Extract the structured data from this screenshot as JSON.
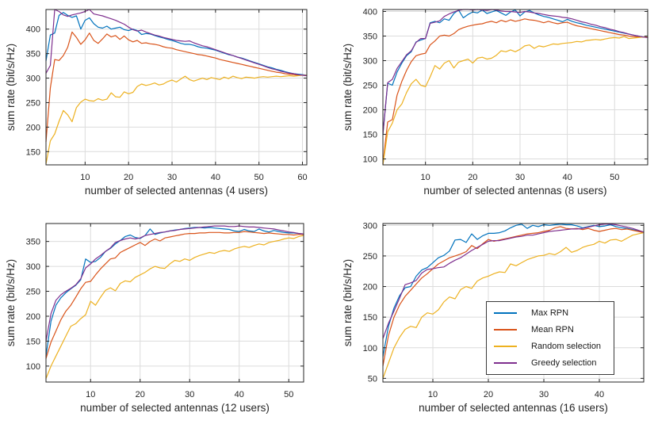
{
  "figure": {
    "background": "#ffffff",
    "axis_color": "#262626",
    "grid_color": "#dcdcdc",
    "ylabel": "sum rate (bit/s/Hz)"
  },
  "legend": {
    "background": "#ffffff",
    "border_color": "#3a3a3a",
    "entries": [
      {
        "label": "Max RPN",
        "color": "#0072BD"
      },
      {
        "label": "Mean RPN",
        "color": "#D95319"
      },
      {
        "label": "Random selection",
        "color": "#EDB120"
      },
      {
        "label": "Greedy selection",
        "color": "#7E2F8E"
      }
    ]
  },
  "chart_data": [
    {
      "type": "line",
      "title": "",
      "xlabel": "number of selected antennas (4 users)",
      "ylabel": "sum rate (bit/s/Hz)",
      "xlim": [
        1,
        61
      ],
      "ylim": [
        123,
        440
      ],
      "xticks": [
        10,
        20,
        30,
        40,
        50,
        60
      ],
      "yticks": [
        150,
        200,
        250,
        300,
        350,
        400
      ],
      "grid": true,
      "legend_position": "none",
      "x_start": 1,
      "x_step": 1,
      "series": [
        {
          "name": "Max RPN",
          "color": "#0072BD",
          "values": [
            335,
            388,
            392,
            428,
            434,
            428,
            424,
            427,
            400,
            418,
            423,
            411,
            404,
            402,
            406,
            400,
            402,
            404,
            399,
            397,
            400,
            397,
            389,
            391,
            390,
            387,
            384,
            382,
            379,
            377,
            374,
            371,
            369,
            369,
            367,
            364,
            362,
            361,
            359,
            357,
            354,
            351,
            348,
            346,
            343,
            341,
            338,
            335,
            332,
            329,
            326,
            323,
            321,
            318,
            316,
            313,
            311,
            309,
            308,
            307,
            306
          ]
        },
        {
          "name": "Mean RPN",
          "color": "#D95319",
          "values": [
            170,
            280,
            338,
            336,
            346,
            363,
            394,
            383,
            369,
            378,
            392,
            377,
            371,
            380,
            390,
            384,
            387,
            379,
            386,
            378,
            374,
            377,
            371,
            372,
            370,
            369,
            367,
            364,
            362,
            361,
            358,
            356,
            354,
            352,
            350,
            348,
            347,
            345,
            343,
            341,
            338,
            336,
            334,
            332,
            330,
            328,
            326,
            324,
            322,
            320,
            318,
            316,
            314,
            312,
            311,
            309,
            308,
            307,
            306,
            306,
            305
          ]
        },
        {
          "name": "Random selection",
          "color": "#EDB120",
          "values": [
            125,
            172,
            186,
            212,
            234,
            225,
            211,
            240,
            251,
            257,
            254,
            253,
            258,
            255,
            257,
            270,
            262,
            261,
            272,
            268,
            271,
            283,
            288,
            285,
            287,
            290,
            286,
            288,
            293,
            296,
            292,
            298,
            304,
            297,
            294,
            297,
            300,
            297,
            301,
            299,
            297,
            302,
            299,
            304,
            301,
            299,
            302,
            301,
            300,
            302,
            303,
            302,
            303,
            304,
            303,
            304,
            305,
            304,
            305,
            306,
            306
          ]
        },
        {
          "name": "Greedy selection",
          "color": "#7E2F8E",
          "values": [
            310,
            326,
            440,
            436,
            429,
            426,
            429,
            431,
            433,
            436,
            440,
            431,
            429,
            427,
            424,
            421,
            418,
            414,
            410,
            404,
            399,
            396,
            398,
            394,
            391,
            388,
            386,
            383,
            381,
            379,
            377,
            376,
            375,
            376,
            372,
            369,
            366,
            364,
            361,
            358,
            355,
            352,
            349,
            346,
            343,
            340,
            337,
            334,
            331,
            328,
            325,
            322,
            319,
            317,
            314,
            312,
            310,
            309,
            307,
            306,
            305
          ]
        }
      ]
    },
    {
      "type": "line",
      "title": "",
      "xlabel": "number of selected antennas (8 users)",
      "ylabel": "sum rate (bit/s/Hz)",
      "xlim": [
        1,
        57
      ],
      "ylim": [
        88,
        404
      ],
      "xticks": [
        10,
        20,
        30,
        40,
        50
      ],
      "yticks": [
        100,
        150,
        200,
        250,
        300,
        350,
        400
      ],
      "grid": true,
      "legend_position": "none",
      "x_start": 1,
      "x_step": 1,
      "series": [
        {
          "name": "Max RPN",
          "color": "#0072BD",
          "values": [
            150,
            254,
            250,
            277,
            295,
            310,
            318,
            338,
            342,
            345,
            377,
            380,
            377,
            385,
            382,
            396,
            403,
            387,
            394,
            399,
            397,
            403,
            396,
            399,
            402,
            397,
            392,
            399,
            403,
            391,
            399,
            402,
            397,
            393,
            390,
            388,
            385,
            382,
            379,
            384,
            380,
            377,
            375,
            372,
            370,
            368,
            366,
            364,
            362,
            360,
            358,
            356,
            354,
            352,
            350,
            348,
            347
          ]
        },
        {
          "name": "Mean RPN",
          "color": "#D95319",
          "values": [
            90,
            175,
            180,
            230,
            258,
            280,
            298,
            310,
            313,
            315,
            332,
            340,
            350,
            352,
            350,
            355,
            363,
            367,
            370,
            372,
            374,
            375,
            378,
            380,
            377,
            382,
            379,
            383,
            380,
            382,
            385,
            383,
            382,
            380,
            377,
            380,
            377,
            375,
            377,
            378,
            374,
            371,
            369,
            367,
            365,
            363,
            361,
            359,
            357,
            355,
            353,
            352,
            350,
            349,
            348,
            348,
            347
          ]
        },
        {
          "name": "Random selection",
          "color": "#EDB120",
          "values": [
            88,
            155,
            173,
            200,
            212,
            235,
            253,
            262,
            250,
            247,
            267,
            290,
            283,
            295,
            300,
            285,
            297,
            300,
            303,
            295,
            305,
            307,
            303,
            305,
            311,
            320,
            318,
            322,
            318,
            323,
            330,
            332,
            325,
            330,
            328,
            331,
            334,
            333,
            335,
            336,
            337,
            339,
            338,
            341,
            342,
            343,
            342,
            344,
            346,
            347,
            346,
            349,
            345,
            346,
            347,
            348,
            348
          ]
        },
        {
          "name": "Greedy selection",
          "color": "#7E2F8E",
          "values": [
            150,
            255,
            262,
            284,
            298,
            312,
            320,
            337,
            345,
            345,
            376,
            378,
            381,
            390,
            395,
            399,
            402,
            404,
            404,
            403,
            404,
            403,
            402,
            404,
            403,
            401,
            400,
            400,
            399,
            398,
            400,
            399,
            397,
            396,
            394,
            392,
            391,
            390,
            388,
            387,
            385,
            382,
            379,
            377,
            374,
            372,
            369,
            367,
            364,
            362,
            359,
            357,
            354,
            352,
            350,
            348,
            347
          ]
        }
      ]
    },
    {
      "type": "line",
      "title": "",
      "xlabel": "number of selected antennas (12 users)",
      "ylabel": "sum rate (bit/s/Hz)",
      "xlim": [
        1,
        53
      ],
      "ylim": [
        68,
        386
      ],
      "xticks": [
        10,
        20,
        30,
        40,
        50
      ],
      "yticks": [
        100,
        150,
        200,
        250,
        300,
        350
      ],
      "grid": true,
      "legend_position": "none",
      "x_start": 1,
      "x_step": 1,
      "series": [
        {
          "name": "Max RPN",
          "color": "#0072BD",
          "values": [
            120,
            190,
            222,
            237,
            247,
            255,
            262,
            273,
            315,
            308,
            310,
            318,
            330,
            336,
            345,
            352,
            360,
            363,
            358,
            356,
            362,
            375,
            364,
            367,
            369,
            371,
            373,
            374,
            376,
            377,
            378,
            378,
            377,
            378,
            377,
            376,
            375,
            374,
            371,
            370,
            374,
            371,
            370,
            375,
            371,
            369,
            372,
            370,
            368,
            367,
            367,
            366,
            365
          ]
        },
        {
          "name": "Mean RPN",
          "color": "#D95319",
          "values": [
            115,
            148,
            170,
            193,
            210,
            222,
            238,
            255,
            268,
            270,
            283,
            295,
            305,
            315,
            317,
            328,
            333,
            338,
            343,
            348,
            342,
            350,
            355,
            351,
            357,
            359,
            361,
            363,
            365,
            366,
            366,
            367,
            367,
            368,
            368,
            368,
            367,
            367,
            368,
            368,
            370,
            369,
            368,
            367,
            366,
            367,
            366,
            365,
            364,
            364,
            363,
            364,
            364
          ]
        },
        {
          "name": "Random selection",
          "color": "#EDB120",
          "values": [
            75,
            100,
            120,
            140,
            160,
            180,
            185,
            195,
            203,
            230,
            222,
            238,
            252,
            257,
            251,
            266,
            271,
            269,
            278,
            283,
            288,
            295,
            300,
            297,
            296,
            305,
            312,
            310,
            315,
            312,
            318,
            322,
            325,
            328,
            326,
            330,
            332,
            330,
            335,
            338,
            340,
            338,
            342,
            345,
            343,
            348,
            350,
            352,
            355,
            357,
            356,
            360,
            362
          ]
        },
        {
          "name": "Greedy selection",
          "color": "#7E2F8E",
          "values": [
            150,
            205,
            232,
            243,
            250,
            256,
            263,
            275,
            297,
            305,
            315,
            322,
            330,
            337,
            348,
            352,
            355,
            357,
            355,
            357,
            362,
            364,
            366,
            368,
            369,
            371,
            372,
            374,
            375,
            376,
            377,
            378,
            379,
            380,
            381,
            381,
            381,
            380,
            380,
            381,
            380,
            379,
            379,
            378,
            377,
            376,
            375,
            373,
            371,
            369,
            368,
            366,
            365
          ]
        }
      ]
    },
    {
      "type": "line",
      "title": "",
      "xlabel": "number of selected antennas (16 users)",
      "ylabel": "sum rate (bit/s/Hz)",
      "xlim": [
        1,
        48
      ],
      "ylim": [
        44,
        303
      ],
      "xticks": [
        10,
        20,
        30,
        40
      ],
      "yticks": [
        50,
        100,
        150,
        200,
        250,
        300
      ],
      "grid": true,
      "legend_position": "inside",
      "x_start": 1,
      "x_step": 1,
      "series": [
        {
          "name": "Max RPN",
          "color": "#0072BD",
          "values": [
            85,
            135,
            165,
            185,
            198,
            200,
            217,
            227,
            231,
            239,
            247,
            251,
            258,
            276,
            277,
            272,
            286,
            277,
            283,
            287,
            287,
            288,
            291,
            296,
            300,
            302,
            295,
            300,
            298,
            301,
            300,
            301,
            302,
            301,
            301,
            299,
            296,
            298,
            300,
            298,
            299,
            301,
            298,
            296,
            295,
            293,
            291,
            289
          ]
        },
        {
          "name": "Mean RPN",
          "color": "#D95319",
          "values": [
            70,
            120,
            150,
            170,
            184,
            194,
            204,
            214,
            221,
            229,
            237,
            242,
            247,
            250,
            253,
            257,
            267,
            262,
            270,
            277,
            274,
            276,
            278,
            280,
            282,
            284,
            286,
            287,
            288,
            290,
            292,
            296,
            298,
            295,
            294,
            295,
            293,
            295,
            292,
            290,
            292,
            294,
            295,
            293,
            294,
            292,
            290,
            288
          ]
        },
        {
          "name": "Random selection",
          "color": "#EDB120",
          "values": [
            50,
            75,
            100,
            117,
            130,
            135,
            133,
            150,
            157,
            155,
            162,
            175,
            183,
            180,
            195,
            200,
            197,
            209,
            214,
            217,
            221,
            224,
            223,
            237,
            234,
            239,
            244,
            247,
            250,
            251,
            254,
            252,
            257,
            264,
            256,
            259,
            264,
            267,
            269,
            274,
            271,
            276,
            277,
            274,
            279,
            284,
            286,
            288
          ]
        },
        {
          "name": "Greedy selection",
          "color": "#7E2F8E",
          "values": [
            115,
            140,
            160,
            181,
            203,
            206,
            210,
            222,
            228,
            229,
            231,
            232,
            238,
            243,
            247,
            253,
            259,
            264,
            269,
            274,
            275,
            275,
            277,
            279,
            281,
            282,
            284,
            284,
            286,
            288,
            290,
            291,
            292,
            293,
            294,
            294,
            295,
            297,
            299,
            301,
            302,
            302,
            301,
            299,
            297,
            295,
            292,
            289
          ]
        }
      ]
    }
  ]
}
